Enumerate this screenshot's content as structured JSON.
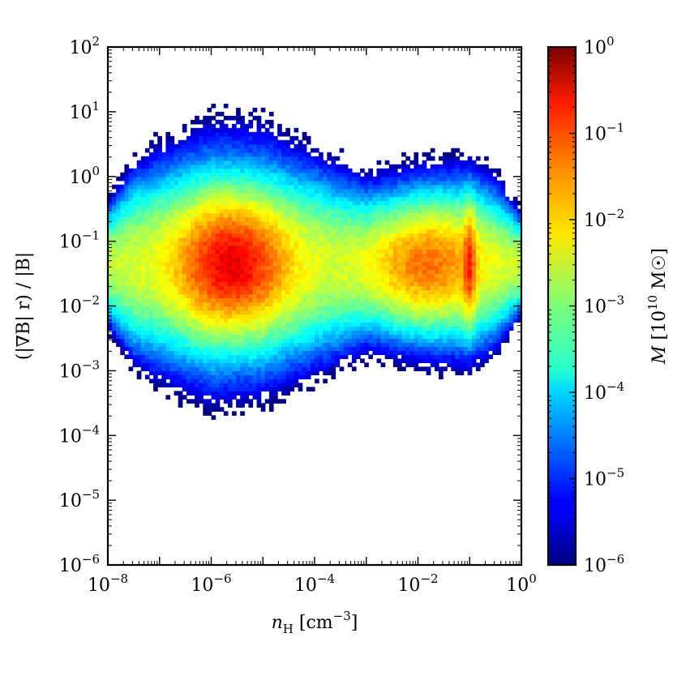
{
  "chart_data": {
    "type": "heatmap",
    "title": "",
    "xlabel": "n_H [cm^-3]",
    "ylabel": "(|∇B| r) / |B|",
    "colorbar_label": "M [10^10 M☉]",
    "x_scale": "log",
    "y_scale": "log",
    "color_scale": "log",
    "xlim": [
      1e-08,
      1
    ],
    "ylim": [
      1e-06,
      100
    ],
    "clim": [
      1e-06,
      1
    ],
    "colormap": "jet",
    "grid": false,
    "x_ticks": [
      {
        "base": "10",
        "exp": "−8"
      },
      {
        "base": "10",
        "exp": "−6"
      },
      {
        "base": "10",
        "exp": "−4"
      },
      {
        "base": "10",
        "exp": "−2"
      },
      {
        "base": "10",
        "exp": "0"
      }
    ],
    "y_ticks": [
      {
        "base": "10",
        "exp": "−6"
      },
      {
        "base": "10",
        "exp": "−5"
      },
      {
        "base": "10",
        "exp": "−4"
      },
      {
        "base": "10",
        "exp": "−3"
      },
      {
        "base": "10",
        "exp": "−2"
      },
      {
        "base": "10",
        "exp": "−1"
      },
      {
        "base": "10",
        "exp": "0"
      },
      {
        "base": "10",
        "exp": "1"
      },
      {
        "base": "10",
        "exp": "2"
      }
    ],
    "colorbar_ticks": [
      {
        "base": "10",
        "exp": "−6"
      },
      {
        "base": "10",
        "exp": "−5"
      },
      {
        "base": "10",
        "exp": "−4"
      },
      {
        "base": "10",
        "exp": "−3"
      },
      {
        "base": "10",
        "exp": "−2"
      },
      {
        "base": "10",
        "exp": "−1"
      },
      {
        "base": "10",
        "exp": "0"
      }
    ],
    "density_peaks": [
      {
        "log_nH": -5.6,
        "log_ratio": -1.35,
        "log_mass": -1.3
      },
      {
        "log_nH": -1.8,
        "log_ratio": -1.3,
        "log_mass": -1.9
      },
      {
        "log_nH": -1.0,
        "log_ratio": -1.3,
        "log_mass": -1.6
      }
    ]
  }
}
